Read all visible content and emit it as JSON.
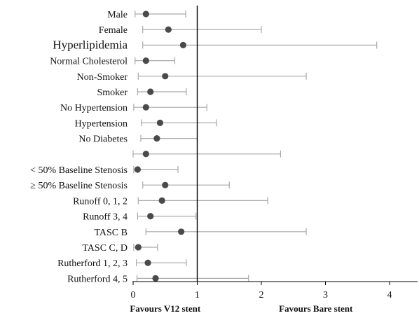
{
  "chart_data": {
    "type": "forest",
    "xlim": [
      0,
      4.5
    ],
    "ticks": [
      "0",
      "1",
      "2",
      "3",
      "4"
    ],
    "reference_line": 1,
    "left_caption": "Favours V12 stent",
    "right_caption": "Favours Bare stent",
    "rows": [
      {
        "label": "Male",
        "estimate": 0.2,
        "lower": 0.03,
        "upper": 0.82,
        "emphasized": false
      },
      {
        "label": "Female",
        "estimate": 0.55,
        "lower": 0.15,
        "upper": 2.0,
        "emphasized": false
      },
      {
        "label": "Hyperlipidemia",
        "estimate": 0.78,
        "lower": 0.15,
        "upper": 3.8,
        "emphasized": true
      },
      {
        "label": "Normal Cholesterol",
        "estimate": 0.2,
        "lower": 0.03,
        "upper": 0.65,
        "emphasized": false
      },
      {
        "label": "Non-Smoker",
        "estimate": 0.5,
        "lower": 0.08,
        "upper": 2.7,
        "emphasized": false
      },
      {
        "label": "Smoker",
        "estimate": 0.27,
        "lower": 0.07,
        "upper": 0.83,
        "emphasized": false
      },
      {
        "label": "No Hypertension",
        "estimate": 0.2,
        "lower": 0.01,
        "upper": 1.15,
        "emphasized": false
      },
      {
        "label": "Hypertension",
        "estimate": 0.42,
        "lower": 0.13,
        "upper": 1.3,
        "emphasized": false
      },
      {
        "label": "No Diabetes",
        "estimate": 0.37,
        "lower": 0.12,
        "upper": 1.0,
        "emphasized": false
      },
      {
        "label": "",
        "estimate": 0.2,
        "lower": 0.0,
        "upper": 2.3,
        "emphasized": false
      },
      {
        "label": "< 50% Baseline Stenosis",
        "estimate": 0.07,
        "lower": 0.01,
        "upper": 0.7,
        "emphasized": false
      },
      {
        "label": "≥ 50% Baseline Stenosis",
        "estimate": 0.5,
        "lower": 0.15,
        "upper": 1.5,
        "emphasized": false
      },
      {
        "label": "Runoff 0, 1, 2",
        "estimate": 0.45,
        "lower": 0.08,
        "upper": 2.1,
        "emphasized": false
      },
      {
        "label": "Runoff 3, 4",
        "estimate": 0.27,
        "lower": 0.07,
        "upper": 0.98,
        "emphasized": false
      },
      {
        "label": "TASC B",
        "estimate": 0.75,
        "lower": 0.2,
        "upper": 2.7,
        "emphasized": false
      },
      {
        "label": "TASC C, D",
        "estimate": 0.08,
        "lower": 0.01,
        "upper": 0.38,
        "emphasized": false
      },
      {
        "label": "Rutherford 1, 2, 3",
        "estimate": 0.23,
        "lower": 0.05,
        "upper": 0.83,
        "emphasized": false
      },
      {
        "label": "Rutherford 4, 5",
        "estimate": 0.35,
        "lower": 0.06,
        "upper": 1.8,
        "emphasized": false
      }
    ]
  }
}
